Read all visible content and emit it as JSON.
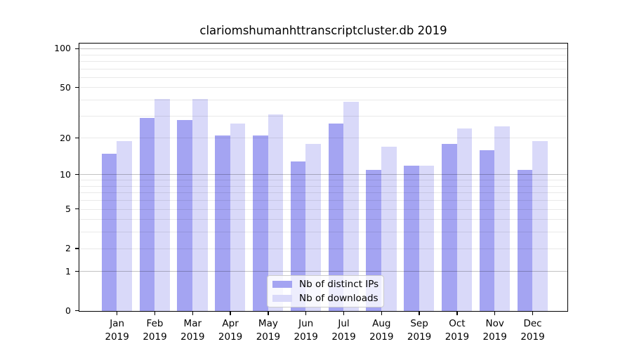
{
  "title": "clariomshumanhttranscriptcluster.db 2019",
  "chart_data": {
    "type": "bar",
    "title": "clariomshumanhttranscriptcluster.db 2019",
    "categories": [
      "Jan 2019",
      "Feb 2019",
      "Mar 2019",
      "Apr 2019",
      "May 2019",
      "Jun 2019",
      "Jul 2019",
      "Aug 2019",
      "Sep 2019",
      "Oct 2019",
      "Nov 2019",
      "Dec 2019"
    ],
    "series": [
      {
        "name": "Nb of distinct IPs",
        "color": "#a4a4f2",
        "values": [
          15,
          29,
          28,
          21,
          21,
          13,
          26,
          11,
          12,
          18,
          16,
          11
        ]
      },
      {
        "name": "Nb of downloads",
        "color": "#d9d9f9",
        "values": [
          19,
          41,
          41,
          26,
          31,
          18,
          39,
          17,
          12,
          24,
          25,
          19
        ]
      }
    ],
    "y_axis": {
      "scale": "log1p",
      "ticks": [
        0,
        1,
        2,
        5,
        10,
        20,
        50,
        100
      ],
      "major_gridlines": [
        1,
        10,
        100
      ],
      "minor_gridlines": [
        2,
        3,
        4,
        5,
        6,
        7,
        8,
        9,
        20,
        30,
        40,
        50,
        60,
        70,
        80,
        90
      ],
      "range": [
        0,
        110
      ]
    },
    "legend": {
      "position": "lower center"
    },
    "grid": "on",
    "plot_border": "box"
  }
}
